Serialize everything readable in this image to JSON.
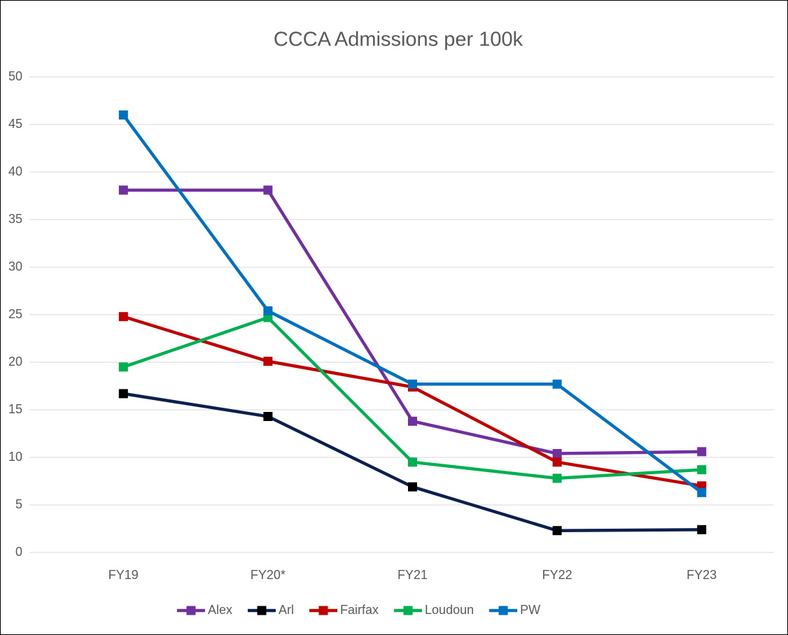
{
  "chart_data": {
    "type": "line",
    "title": "CCCA Admissions per 100k",
    "categories": [
      "FY19",
      "FY20*",
      "FY21",
      "FY22",
      "FY23"
    ],
    "series": [
      {
        "name": "Alex",
        "color": "#7030a0",
        "values": [
          38.1,
          38.1,
          13.8,
          10.4,
          10.6
        ]
      },
      {
        "name": "Arl",
        "color": "#0d1f4d",
        "marker_color": "#000000",
        "values": [
          16.7,
          14.3,
          6.9,
          2.3,
          2.4
        ]
      },
      {
        "name": "Fairfax",
        "color": "#c00000",
        "values": [
          24.8,
          20.1,
          17.4,
          9.5,
          7.0
        ]
      },
      {
        "name": "Loudoun",
        "color": "#00b050",
        "values": [
          19.5,
          24.7,
          9.5,
          7.8,
          8.7
        ]
      },
      {
        "name": "PW",
        "color": "#0070c0",
        "values": [
          46.0,
          25.4,
          17.7,
          17.7,
          6.3
        ]
      }
    ],
    "ylim": [
      0,
      50
    ],
    "yticks": [
      0,
      5,
      10,
      15,
      20,
      25,
      30,
      35,
      40,
      45,
      50
    ],
    "grid": true,
    "legend": "bottom"
  }
}
